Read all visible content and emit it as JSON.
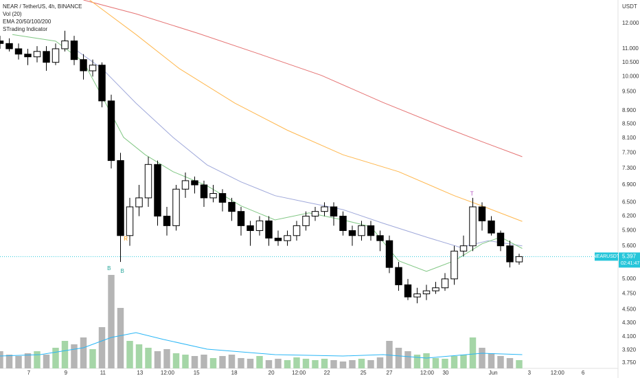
{
  "chart_data": {
    "type": "candlestick",
    "title": "NEAR / TetherUS, 4h, BINANCE",
    "indicators": [
      "Vol (20)",
      "EMA 20/50/100/200",
      "STrading Indicator"
    ],
    "currency": "USDT",
    "log_scale": true,
    "grid": false,
    "xlim": [
      0,
      200
    ],
    "ylim": [
      3.68,
      13.0
    ],
    "yticks": [
      {
        "value": 12,
        "label": "12.000"
      },
      {
        "value": 11,
        "label": "11.000"
      },
      {
        "value": 10.5,
        "label": "10.500"
      },
      {
        "value": 10,
        "label": "10.000"
      },
      {
        "value": 9.5,
        "label": "9.500"
      },
      {
        "value": 8.9,
        "label": "8.900"
      },
      {
        "value": 8.5,
        "label": "8.500"
      },
      {
        "value": 8.1,
        "label": "8.100"
      },
      {
        "value": 7.7,
        "label": "7.700"
      },
      {
        "value": 7.3,
        "label": "7.300"
      },
      {
        "value": 6.9,
        "label": "6.900"
      },
      {
        "value": 6.5,
        "label": "6.500"
      },
      {
        "value": 6.2,
        "label": "6.200"
      },
      {
        "value": 5.9,
        "label": "5.900"
      },
      {
        "value": 5.6,
        "label": "5.600"
      },
      {
        "value": 5,
        "label": "5.000"
      },
      {
        "value": 4.75,
        "label": "4.750"
      },
      {
        "value": 4.5,
        "label": "4.500"
      },
      {
        "value": 4.3,
        "label": "4.300"
      },
      {
        "value": 4.1,
        "label": "4.100"
      },
      {
        "value": 3.92,
        "label": "3.920"
      },
      {
        "value": 3.75,
        "label": "3.750"
      }
    ],
    "xticks": [
      {
        "value": 9.3,
        "label": "7"
      },
      {
        "value": 21.3,
        "label": "9"
      },
      {
        "value": 33.3,
        "label": "11"
      },
      {
        "value": 45.3,
        "label": "13"
      },
      {
        "value": 54.2,
        "label": "12:00"
      },
      {
        "value": 63.6,
        "label": "15"
      },
      {
        "value": 75.8,
        "label": "18"
      },
      {
        "value": 87.8,
        "label": "20"
      },
      {
        "value": 96.7,
        "label": "12:00"
      },
      {
        "value": 105.8,
        "label": "22"
      },
      {
        "value": 117.6,
        "label": "25"
      },
      {
        "value": 126,
        "label": "27"
      },
      {
        "value": 138.2,
        "label": "12:00"
      },
      {
        "value": 144.2,
        "label": "30"
      },
      {
        "value": 159.6,
        "label": "Jun"
      },
      {
        "value": 171.3,
        "label": "3"
      },
      {
        "value": 180.4,
        "label": "12:00"
      },
      {
        "value": 188.7,
        "label": "6"
      }
    ],
    "x": [
      0,
      3,
      6,
      9,
      12,
      15,
      18,
      21,
      24,
      27,
      30,
      33,
      36,
      39,
      42,
      45,
      48,
      51,
      54,
      57,
      60,
      63,
      66,
      69,
      72,
      75,
      78,
      81,
      84,
      87,
      90,
      93,
      96,
      99,
      102,
      105,
      108,
      111,
      114,
      117,
      120,
      123,
      126,
      129,
      132,
      135,
      138,
      141,
      144,
      147,
      150,
      153,
      156,
      159,
      162,
      165,
      168
    ],
    "open": [
      11.3,
      11.2,
      11.0,
      10.8,
      10.7,
      10.9,
      10.5,
      11.0,
      11.3,
      10.6,
      10.2,
      10.4,
      9.2,
      7.5,
      5.8,
      6.4,
      6.6,
      7.4,
      6.2,
      6.0,
      6.8,
      7.0,
      6.9,
      6.6,
      6.7,
      6.5,
      6.3,
      6.0,
      5.9,
      6.1,
      5.75,
      5.7,
      5.8,
      6.0,
      6.2,
      6.3,
      6.4,
      6.2,
      5.9,
      5.8,
      6.0,
      5.8,
      5.7,
      5.2,
      4.9,
      4.7,
      4.75,
      4.8,
      4.85,
      5.0,
      5.5,
      5.6,
      6.4,
      6.1,
      5.85,
      5.6,
      5.3
    ],
    "high": [
      11.5,
      11.4,
      11.2,
      11.0,
      11.1,
      11.1,
      11.2,
      11.7,
      11.5,
      10.8,
      10.6,
      10.5,
      9.4,
      7.7,
      6.6,
      6.9,
      7.6,
      7.5,
      6.4,
      6.9,
      7.2,
      7.1,
      7.0,
      6.9,
      6.8,
      6.6,
      6.4,
      6.1,
      6.2,
      6.2,
      5.9,
      5.9,
      6.1,
      6.3,
      6.4,
      6.5,
      6.5,
      6.3,
      6.0,
      6.1,
      6.1,
      5.9,
      5.8,
      5.3,
      5.0,
      4.85,
      4.9,
      4.95,
      5.1,
      5.6,
      5.8,
      6.6,
      6.5,
      6.2,
      5.9,
      5.7,
      5.45
    ],
    "low": [
      11.0,
      10.9,
      10.6,
      10.4,
      10.5,
      10.2,
      10.4,
      10.9,
      10.4,
      9.9,
      10.0,
      9.0,
      7.3,
      5.3,
      5.6,
      6.2,
      6.4,
      6.0,
      5.8,
      5.9,
      6.6,
      6.7,
      6.4,
      6.5,
      6.3,
      6.1,
      5.8,
      5.6,
      5.8,
      5.6,
      5.6,
      5.6,
      5.7,
      5.9,
      6.1,
      6.2,
      6.0,
      5.8,
      5.6,
      5.7,
      5.7,
      5.5,
      5.1,
      4.8,
      4.65,
      4.6,
      4.65,
      4.75,
      4.8,
      4.9,
      5.4,
      5.5,
      5.9,
      5.8,
      5.5,
      5.2,
      5.25
    ],
    "close": [
      11.2,
      11.0,
      10.8,
      10.7,
      10.9,
      10.5,
      11.0,
      11.3,
      10.6,
      10.2,
      10.4,
      9.2,
      7.5,
      5.8,
      6.4,
      6.6,
      7.4,
      6.2,
      6.0,
      6.8,
      7.0,
      6.9,
      6.6,
      6.7,
      6.5,
      6.3,
      6.0,
      5.9,
      6.1,
      5.75,
      5.7,
      5.8,
      6.0,
      6.2,
      6.3,
      6.4,
      6.2,
      5.9,
      5.8,
      6.0,
      5.8,
      5.7,
      5.2,
      4.9,
      4.7,
      4.75,
      4.8,
      4.85,
      5.0,
      5.5,
      5.6,
      6.4,
      6.1,
      5.85,
      5.6,
      5.3,
      5.397
    ],
    "up_color": "#ffffff",
    "down_color": "#000000",
    "volume": [
      25,
      20,
      18,
      22,
      25,
      20,
      30,
      40,
      35,
      45,
      28,
      60,
      136,
      88,
      40,
      35,
      30,
      25,
      28,
      22,
      20,
      18,
      20,
      15,
      18,
      20,
      15,
      14,
      18,
      12,
      14,
      12,
      16,
      14,
      12,
      14,
      12,
      10,
      12,
      14,
      12,
      16,
      40,
      30,
      25,
      20,
      22,
      15,
      14,
      18,
      20,
      45,
      30,
      22,
      18,
      15,
      12
    ],
    "volume_lim": [
      0,
      400
    ],
    "volume_up_color": "#a5d6a7",
    "volume_down_color": "#b5b5b5",
    "volume_ma": {
      "color": "#29b6f6",
      "x": [
        0,
        13,
        27,
        36,
        44,
        53,
        67,
        89,
        111,
        124,
        138,
        156,
        169
      ],
      "values": [
        18,
        20,
        30,
        45,
        52,
        42,
        28,
        20,
        18,
        20,
        15,
        22,
        20
      ]
    },
    "lines": [
      {
        "color": "#e57373",
        "x": [
          27,
          44,
          64,
          84,
          104,
          124,
          144,
          156,
          169
        ],
        "values": [
          13.0,
          12.4,
          11.6,
          10.8,
          10.04,
          9.15,
          8.4,
          8.0,
          7.6
        ]
      },
      {
        "color": "#ffb74d",
        "x": [
          29,
          44,
          58,
          76,
          93,
          111,
          129,
          147,
          156,
          169
        ],
        "values": [
          13.0,
          11.55,
          10.28,
          9.13,
          8.32,
          7.65,
          7.22,
          6.65,
          6.42,
          6.09
        ]
      },
      {
        "color": "#9fa8da",
        "x": [
          24,
          33,
          44,
          56,
          67,
          78,
          89,
          100,
          111,
          124,
          138,
          149,
          158,
          169
        ],
        "values": [
          11.0,
          10.28,
          9.13,
          8.12,
          7.39,
          6.97,
          6.65,
          6.49,
          6.34,
          6.05,
          5.77,
          5.57,
          5.7,
          5.6
        ]
      },
      {
        "color": "#81c784",
        "x": [
          4,
          18,
          27,
          33,
          40,
          47,
          56,
          67,
          78,
          89,
          100,
          111,
          120,
          129,
          138,
          147,
          156,
          162,
          169
        ],
        "values": [
          11.55,
          11.29,
          10.52,
          9.35,
          8.12,
          7.65,
          7.22,
          6.88,
          6.42,
          6.12,
          6.27,
          6.12,
          5.98,
          5.32,
          5.13,
          5.32,
          5.64,
          5.77,
          5.55
        ]
      }
    ],
    "annotations": [
      {
        "text": "B",
        "x": 35.3,
        "price": 5.18,
        "color": "#26a69a"
      },
      {
        "text": "B",
        "x": 39.6,
        "price": 5.13,
        "color": "#26a69a"
      },
      {
        "text": "R",
        "x": 40.7,
        "price": 5.73,
        "color": "#ff9800"
      },
      {
        "text": "T",
        "x": 152.7,
        "price": 6.69,
        "color": "#ab47bc"
      }
    ],
    "last_price": {
      "value": 5.397,
      "label": "5.397"
    },
    "symbol": "NEARUSDT",
    "countdown": "02:41:47",
    "last_color": "#26c6da"
  }
}
